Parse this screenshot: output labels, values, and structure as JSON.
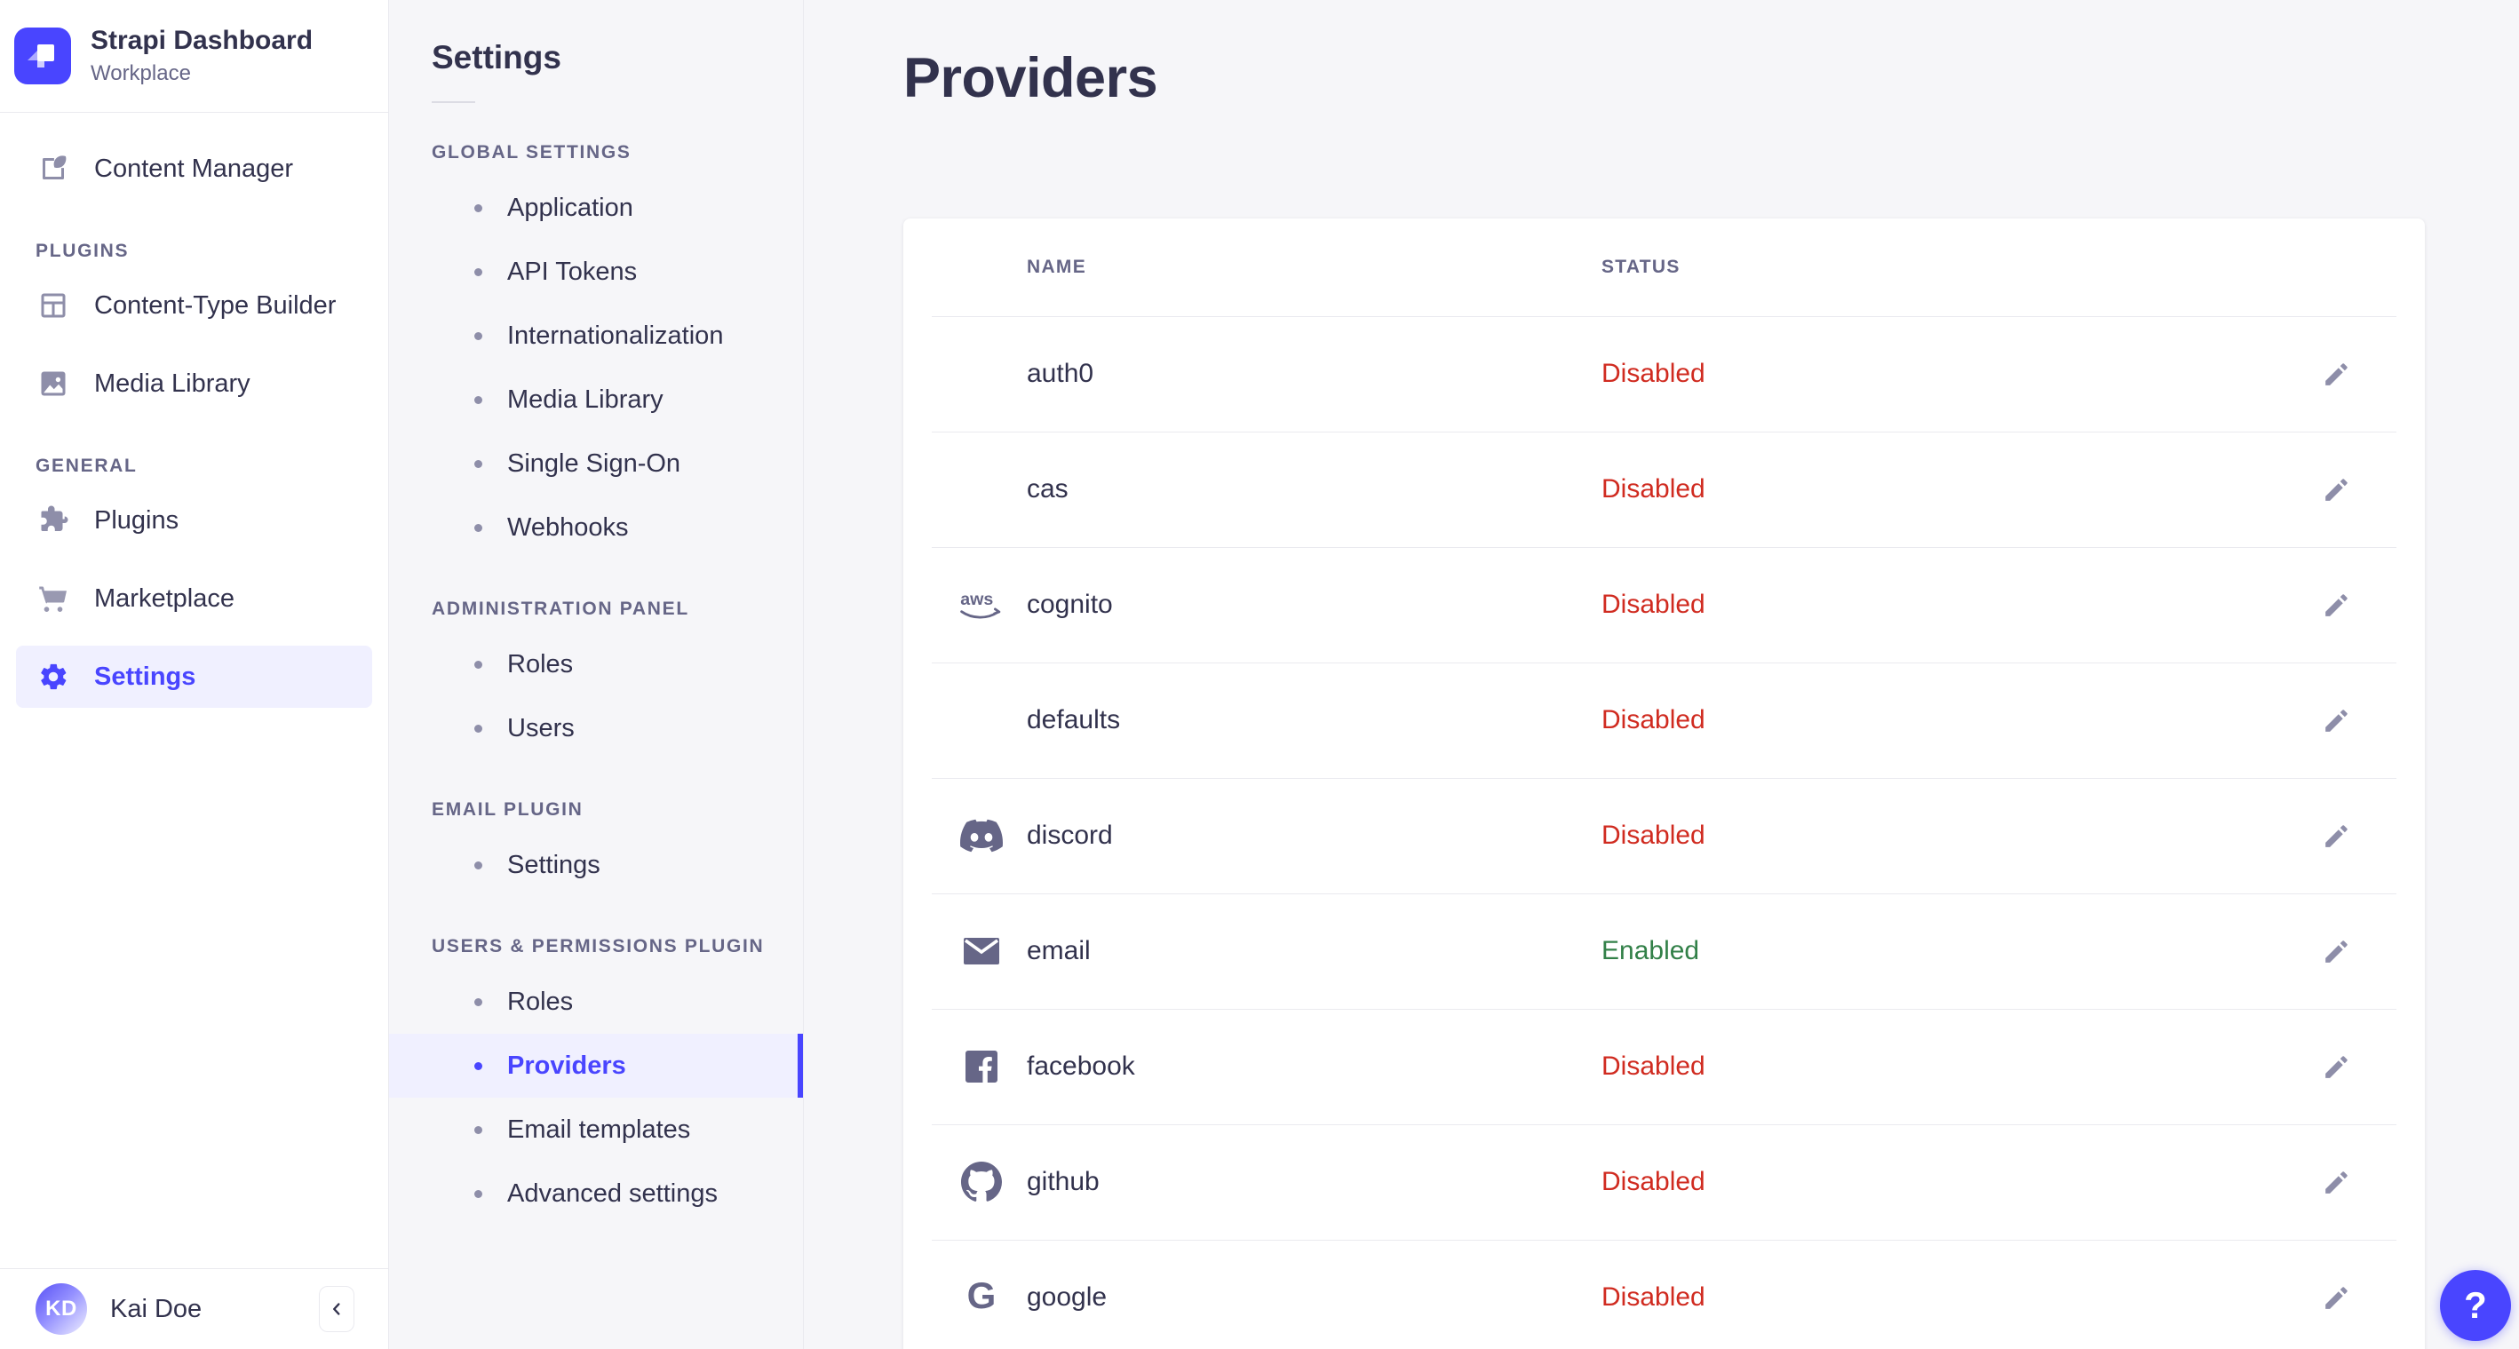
{
  "app": {
    "title": "Strapi Dashboard",
    "workspace": "Workplace"
  },
  "colors": {
    "primary": "#4945ff",
    "primary_bg": "#f0f0ff",
    "text": "#32324d",
    "muted": "#666687",
    "icon": "#8e8ea9",
    "border": "#eaeaef",
    "bg": "#f6f6f9",
    "danger": "#d02b20",
    "success": "#328048"
  },
  "main_sidebar": {
    "top_item": {
      "label": "Content Manager",
      "icon": "content-manager",
      "selected": false
    },
    "sections": [
      {
        "title": "PLUGINS",
        "items": [
          {
            "label": "Content-Type Builder",
            "icon": "content-type-builder",
            "selected": false
          },
          {
            "label": "Media Library",
            "icon": "media-library",
            "selected": false
          }
        ]
      },
      {
        "title": "GENERAL",
        "items": [
          {
            "label": "Plugins",
            "icon": "plugins",
            "selected": false
          },
          {
            "label": "Marketplace",
            "icon": "marketplace",
            "selected": false
          },
          {
            "label": "Settings",
            "icon": "settings",
            "selected": true
          }
        ]
      }
    ],
    "user": {
      "name": "Kai Doe",
      "initials": "KD"
    }
  },
  "settings_nav": {
    "title": "Settings",
    "sections": [
      {
        "title": "GLOBAL SETTINGS",
        "items": [
          {
            "label": "Application",
            "selected": false
          },
          {
            "label": "API Tokens",
            "selected": false
          },
          {
            "label": "Internationalization",
            "selected": false
          },
          {
            "label": "Media Library",
            "selected": false
          },
          {
            "label": "Single Sign-On",
            "selected": false
          },
          {
            "label": "Webhooks",
            "selected": false
          }
        ]
      },
      {
        "title": "ADMINISTRATION PANEL",
        "items": [
          {
            "label": "Roles",
            "selected": false
          },
          {
            "label": "Users",
            "selected": false
          }
        ]
      },
      {
        "title": "EMAIL PLUGIN",
        "items": [
          {
            "label": "Settings",
            "selected": false
          }
        ]
      },
      {
        "title": "USERS & PERMISSIONS PLUGIN",
        "items": [
          {
            "label": "Roles",
            "selected": false
          },
          {
            "label": "Providers",
            "selected": true
          },
          {
            "label": "Email templates",
            "selected": false
          },
          {
            "label": "Advanced settings",
            "selected": false
          }
        ]
      }
    ]
  },
  "main": {
    "title": "Providers",
    "table": {
      "columns": [
        "NAME",
        "STATUS"
      ],
      "rows": [
        {
          "name": "auth0",
          "status": "Disabled",
          "icon": null
        },
        {
          "name": "cas",
          "status": "Disabled",
          "icon": null
        },
        {
          "name": "cognito",
          "status": "Disabled",
          "icon": "aws"
        },
        {
          "name": "defaults",
          "status": "Disabled",
          "icon": null
        },
        {
          "name": "discord",
          "status": "Disabled",
          "icon": "discord"
        },
        {
          "name": "email",
          "status": "Enabled",
          "icon": "email"
        },
        {
          "name": "facebook",
          "status": "Disabled",
          "icon": "facebook"
        },
        {
          "name": "github",
          "status": "Disabled",
          "icon": "github"
        },
        {
          "name": "google",
          "status": "Disabled",
          "icon": "google"
        }
      ]
    }
  },
  "help": {
    "label": "?"
  }
}
